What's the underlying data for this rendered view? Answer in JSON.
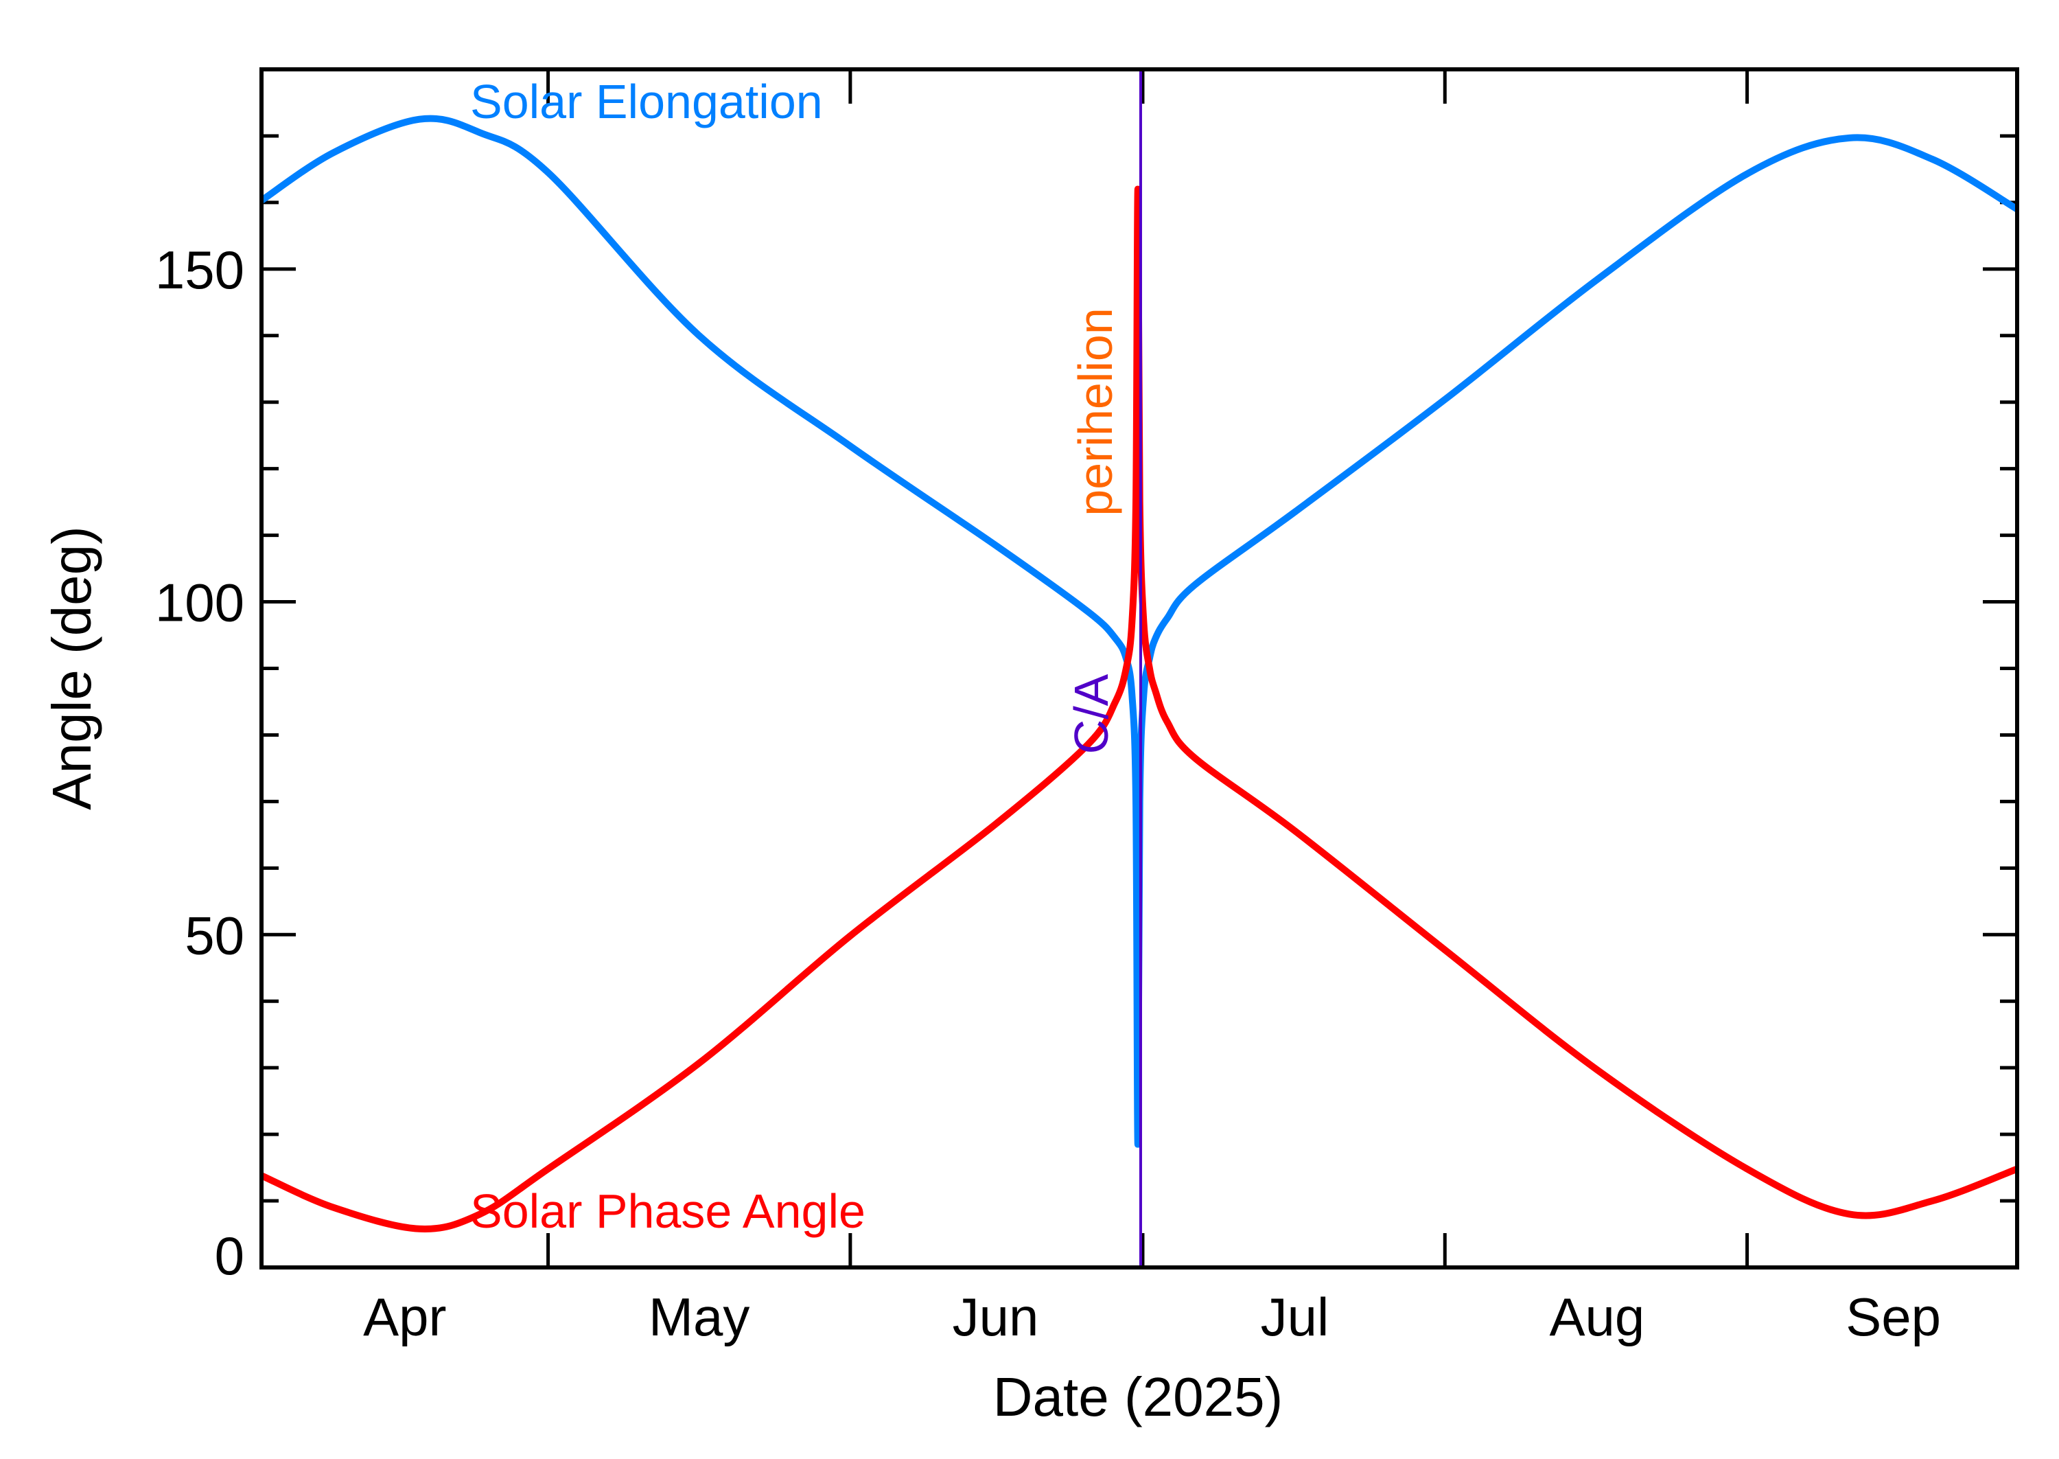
{
  "chart_data": {
    "type": "line",
    "title": "",
    "xlabel": "Date (2025)",
    "ylabel": "Angle (deg)",
    "x_units": "days since 2025-04-01",
    "xlim": [
      0.6,
      180.7
    ],
    "ylim": [
      0,
      180
    ],
    "grid": false,
    "y_major_ticks": [
      0,
      50,
      100,
      150
    ],
    "y_tick_labels": [
      "0",
      "50",
      "100",
      "150"
    ],
    "y_minor_step": 10,
    "x_month_boundaries": [
      30,
      61,
      91,
      122,
      153
    ],
    "x_tick_labels": [
      {
        "label": "Apr",
        "x": 15.3
      },
      {
        "label": "May",
        "x": 45.5
      },
      {
        "label": "Jun",
        "x": 75.9
      },
      {
        "label": "Jul",
        "x": 106.6
      },
      {
        "label": "Aug",
        "x": 137.6
      },
      {
        "label": "Sep",
        "x": 168.0
      }
    ],
    "series": [
      {
        "name": "Solar Elongation",
        "color": "#0080ff",
        "x": [
          0.6,
          8,
          16.8,
          23,
          30,
          45.5,
          60.9,
          75.9,
          85.4,
          88.2,
          89.3,
          89.9,
          90.3,
          90.5,
          90.7,
          91.1,
          91.7,
          92.3,
          93.5,
          96.3,
          106.6,
          122,
          137.6,
          153,
          163.5,
          172,
          180.7
        ],
        "values": [
          160.3,
          167.5,
          172.5,
          170.5,
          164.5,
          140,
          123.5,
          108.5,
          98.5,
          94.5,
          91.5,
          86,
          70,
          18.5,
          70,
          86,
          91.5,
          94.5,
          97.5,
          102.5,
          113.5,
          130.4,
          148.4,
          164.3,
          169.7,
          166.5,
          159
        ]
      },
      {
        "name": "Solar Phase Angle",
        "color": "#ff0000",
        "x": [
          0.6,
          8,
          16.8,
          23,
          30,
          45.5,
          60.9,
          75.9,
          85.4,
          88.2,
          89.3,
          89.9,
          90.3,
          90.5,
          90.7,
          91.1,
          91.7,
          92.3,
          93.5,
          96.3,
          106.6,
          122,
          137.6,
          153,
          163.5,
          172,
          180.7
        ],
        "values": [
          13.8,
          9,
          5.8,
          8,
          14.8,
          30.7,
          49.7,
          66.6,
          78.6,
          85,
          90,
          97,
          115,
          162,
          115,
          97,
          90,
          86.6,
          82,
          76.6,
          65.6,
          47.7,
          29.7,
          14.8,
          8,
          10,
          14.8
        ]
      }
    ],
    "markers": [
      {
        "name": "C/A",
        "x": 91,
        "color": "#5000c8"
      }
    ],
    "annotations": {
      "elongation_label": "Solar Elongation",
      "phase_label": "Solar Phase Angle",
      "perihelion_label": "perihelion",
      "ca_label": "C/A"
    },
    "colors": {
      "elongation": "#0080ff",
      "phase": "#ff0000",
      "perihelion": "#ff6600",
      "ca": "#5000c8",
      "axes": "#000000"
    }
  }
}
